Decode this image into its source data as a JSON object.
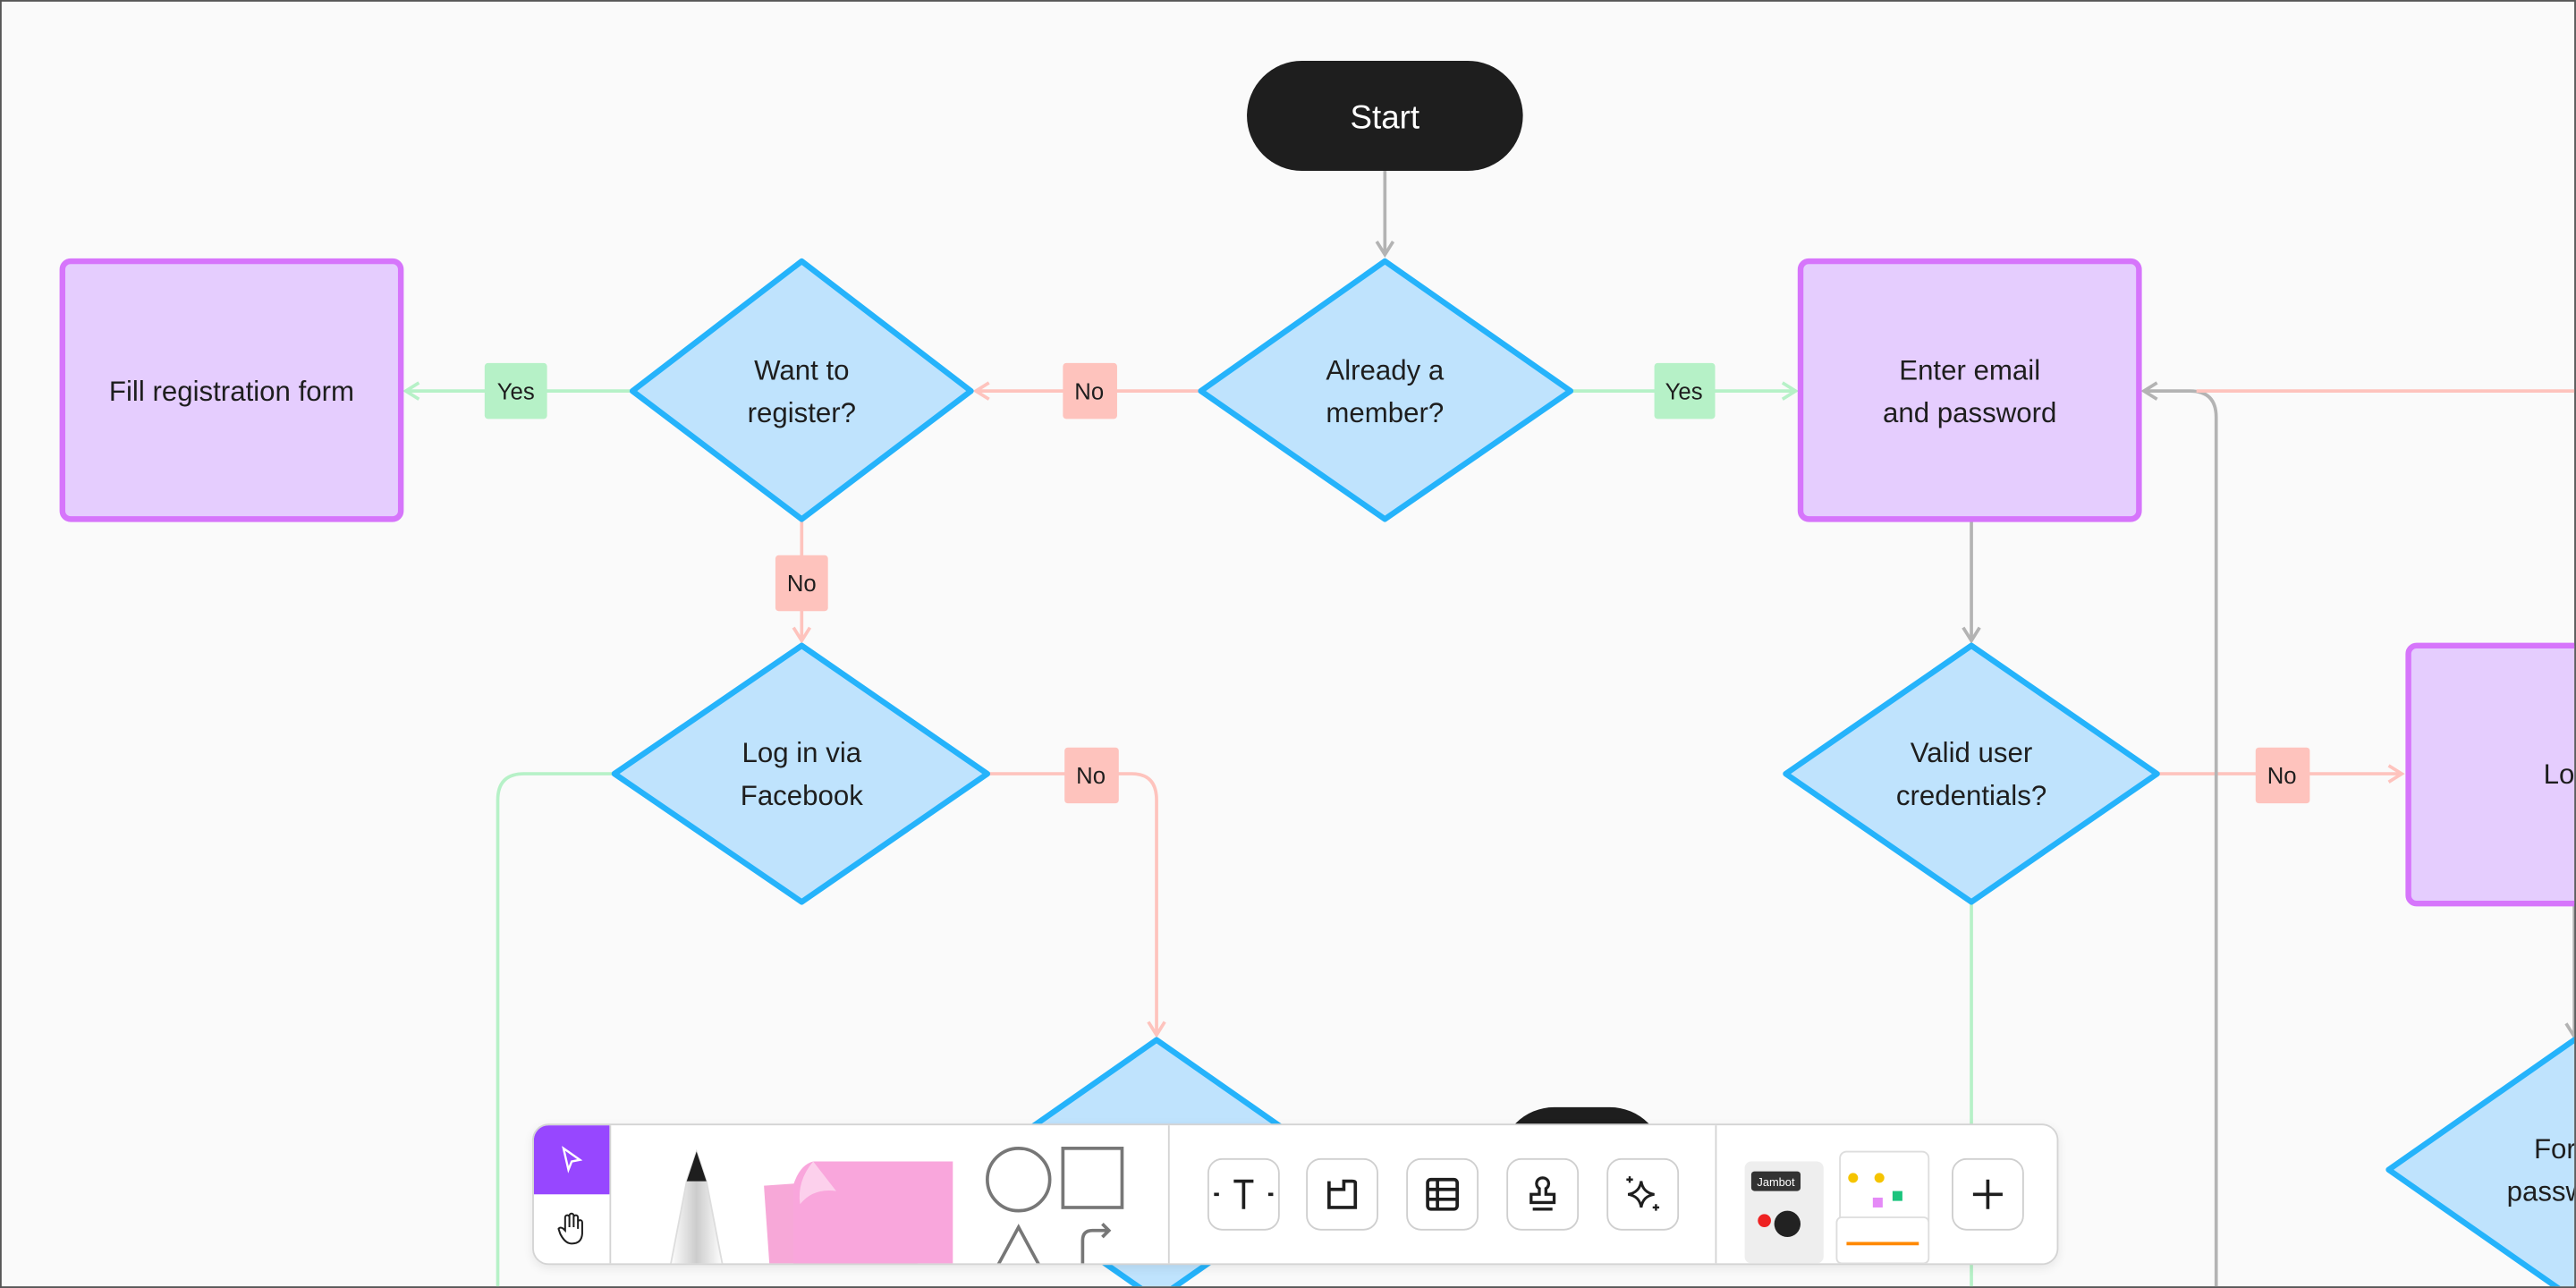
{
  "nodes": {
    "start": "Start",
    "already_member": [
      "Already a",
      "member?"
    ],
    "want_register": [
      "Want to",
      "register?"
    ],
    "fill_form": "Fill registration form",
    "enter_email": [
      "Enter email",
      "and password"
    ],
    "facebook": [
      "Log in via",
      "Facebook"
    ],
    "valid_credentials": [
      "Valid user",
      "credentials?"
    ],
    "login": "Login",
    "forgot": [
      "Forgot",
      "password?"
    ]
  },
  "edge_labels": {
    "yes": "Yes",
    "no": "No"
  },
  "colors": {
    "decision_fill": "#bfe3fd",
    "decision_stroke": "#25b3fb",
    "process_fill": "#e5cdfe",
    "process_stroke": "#d675fb",
    "terminal": "#1e1e1e",
    "yes_edge": "#b6f1c7",
    "no_edge": "#fec3bd",
    "neutral_edge": "#b3b3b3",
    "accent": "#9747ff"
  },
  "toolbar": {
    "tools": [
      "select-tool",
      "hand-tool",
      "pen-tool",
      "sticky-note-tool",
      "shapes-tool",
      "text-tool",
      "frame-tool",
      "table-tool",
      "stamp-tool",
      "ai-tool",
      "templates",
      "more-tool"
    ],
    "templates_label": "Jambot"
  }
}
